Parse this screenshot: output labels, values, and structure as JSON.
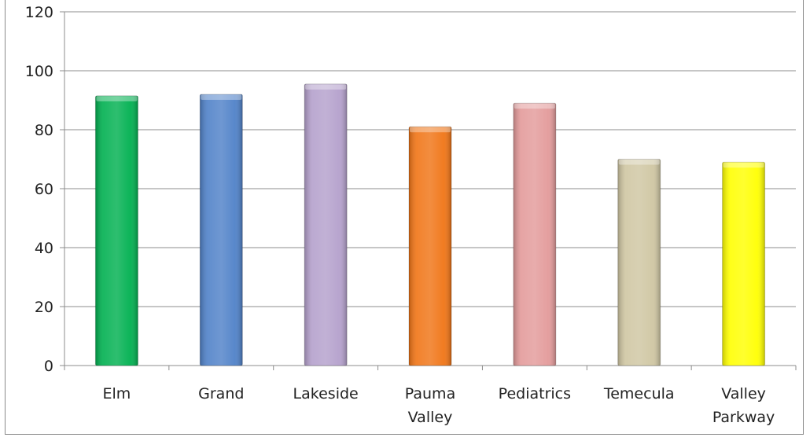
{
  "chart_data": {
    "type": "bar",
    "categories": [
      "Elm",
      "Grand",
      "Lakeside",
      "Pauma Valley",
      "Pediatrics",
      "Temecula",
      "Valley Parkway"
    ],
    "category_lines": [
      [
        "Elm"
      ],
      [
        "Grand"
      ],
      [
        "Lakeside"
      ],
      [
        "Pauma",
        "Valley"
      ],
      [
        "Pediatrics"
      ],
      [
        "Temecula"
      ],
      [
        "Valley",
        "Parkway"
      ]
    ],
    "values": [
      91.5,
      92,
      95.5,
      81,
      89,
      70,
      69
    ],
    "colors": [
      "#00b050",
      "#4f81c8",
      "#b4a0cc",
      "#f07415",
      "#e39a9a",
      "#cfc6a2",
      "#ffff00"
    ],
    "ylim": [
      0,
      120
    ],
    "yticks": [
      0,
      20,
      40,
      60,
      80,
      100,
      120
    ],
    "grid": true,
    "title": "",
    "xlabel": "",
    "ylabel": ""
  }
}
